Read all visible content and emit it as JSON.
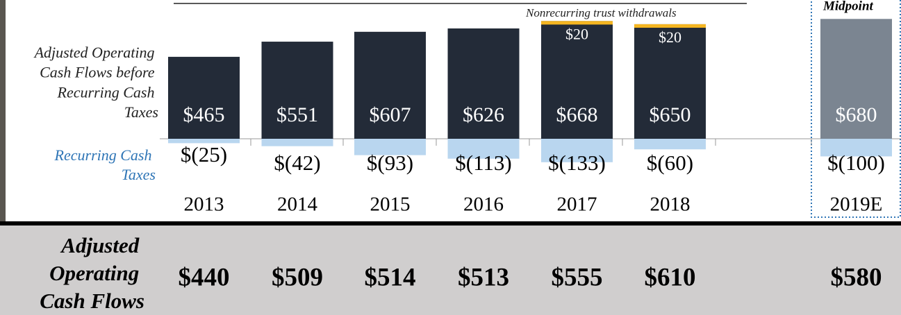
{
  "chart_data": {
    "type": "bar",
    "categories": [
      "2013",
      "2014",
      "2015",
      "2016",
      "2017",
      "2018",
      "2019E"
    ],
    "series": [
      {
        "name": "Adjusted Operating Cash Flows before Recurring Cash Taxes",
        "color": "#232b38",
        "colors": [
          "#232b38",
          "#232b38",
          "#232b38",
          "#232b38",
          "#232b38",
          "#232b38",
          "#7b8591"
        ],
        "values": [
          465,
          551,
          607,
          626,
          668,
          650,
          680
        ],
        "value_labels": [
          "$465",
          "$551",
          "$607",
          "$626",
          "$668",
          "$650",
          "$680"
        ]
      },
      {
        "name": "Recurring Cash Taxes",
        "color": "#b9d6ef",
        "values": [
          -25,
          -42,
          -93,
          -113,
          -133,
          -60,
          -100
        ],
        "value_labels": [
          "$(25)",
          "$(42)",
          "$(93)",
          "$(113)",
          "$(133)",
          "$(60)",
          "$(100)"
        ]
      },
      {
        "name": "Nonrecurring trust withdrawals",
        "color": "#f5b622",
        "values": [
          null,
          null,
          null,
          null,
          20,
          20,
          null
        ],
        "value_labels": [
          null,
          null,
          null,
          null,
          "$20",
          "$20",
          null
        ]
      }
    ],
    "annotation": "Midpoint",
    "totals": {
      "label": "Adjusted Operating Cash Flows",
      "values": [
        440,
        509,
        514,
        513,
        555,
        610,
        580
      ],
      "value_labels": [
        "$440",
        "$509",
        "$514",
        "$513",
        "$555",
        "$610",
        "$580"
      ]
    }
  }
}
